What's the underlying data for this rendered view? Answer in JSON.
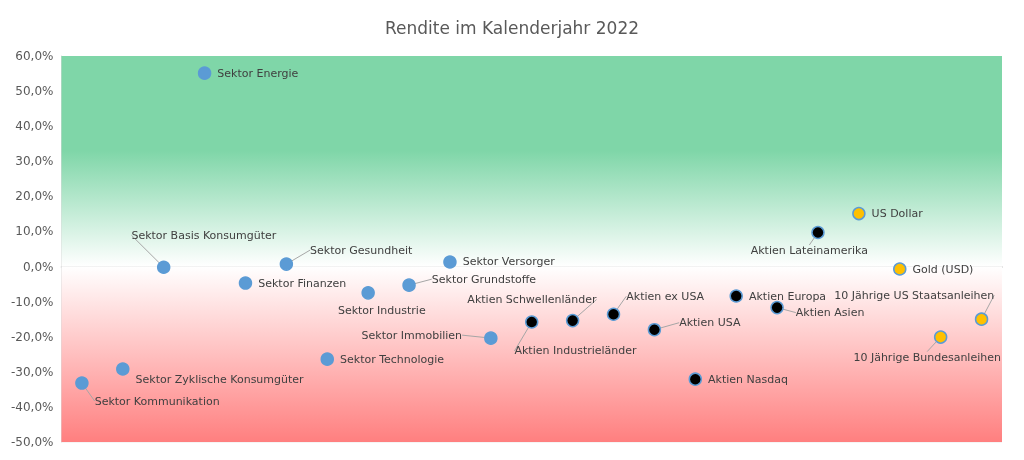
{
  "chart_data": {
    "type": "scatter",
    "title": "Rendite im Kalenderjahr 2022",
    "categories": [
      null,
      null,
      null,
      null,
      null,
      null,
      null,
      null,
      null,
      null,
      null,
      null,
      null,
      null,
      null,
      null,
      null,
      null,
      null,
      null,
      null,
      null,
      null
    ],
    "series": [
      {
        "name": "Sektor Kommunikation",
        "color": "#5b9bd5",
        "values": [
          -33.2,
          null,
          null,
          null,
          null,
          null,
          null,
          null,
          null,
          null,
          null,
          null,
          null,
          null,
          null,
          null,
          null,
          null,
          null,
          null,
          null,
          null,
          null
        ]
      },
      {
        "name": "Sektor Zyklische Konsumgüter",
        "color": "#5b9bd5",
        "values": [
          null,
          -29.2,
          null,
          null,
          null,
          null,
          null,
          null,
          null,
          null,
          null,
          null,
          null,
          null,
          null,
          null,
          null,
          null,
          null,
          null,
          null,
          null,
          null
        ]
      },
      {
        "name": "Sektor Basis Konsumgüter",
        "color": "#5b9bd5",
        "values": [
          null,
          null,
          -0.2,
          null,
          null,
          null,
          null,
          null,
          null,
          null,
          null,
          null,
          null,
          null,
          null,
          null,
          null,
          null,
          null,
          null,
          null,
          null,
          null
        ]
      },
      {
        "name": "Sektor Energie",
        "color": "#5b9bd5",
        "values": [
          null,
          null,
          null,
          55.1,
          null,
          null,
          null,
          null,
          null,
          null,
          null,
          null,
          null,
          null,
          null,
          null,
          null,
          null,
          null,
          null,
          null,
          null,
          null
        ]
      },
      {
        "name": "Sektor Finanzen",
        "color": "#5b9bd5",
        "values": [
          null,
          null,
          null,
          null,
          -4.7,
          null,
          null,
          null,
          null,
          null,
          null,
          null,
          null,
          null,
          null,
          null,
          null,
          null,
          null,
          null,
          null,
          null,
          null
        ]
      },
      {
        "name": "Sektor Gesundheit",
        "color": "#5b9bd5",
        "values": [
          null,
          null,
          null,
          null,
          null,
          0.7,
          null,
          null,
          null,
          null,
          null,
          null,
          null,
          null,
          null,
          null,
          null,
          null,
          null,
          null,
          null,
          null,
          null
        ]
      },
      {
        "name": "Sektor Technologie",
        "color": "#5b9bd5",
        "values": [
          null,
          null,
          null,
          null,
          null,
          null,
          -26.4,
          null,
          null,
          null,
          null,
          null,
          null,
          null,
          null,
          null,
          null,
          null,
          null,
          null,
          null,
          null,
          null
        ]
      },
      {
        "name": "Sektor Industrie",
        "color": "#5b9bd5",
        "values": [
          null,
          null,
          null,
          null,
          null,
          null,
          null,
          -7.5,
          null,
          null,
          null,
          null,
          null,
          null,
          null,
          null,
          null,
          null,
          null,
          null,
          null,
          null,
          null
        ]
      },
      {
        "name": "Sektor Grundstoffe",
        "color": "#5b9bd5",
        "values": [
          null,
          null,
          null,
          null,
          null,
          null,
          null,
          null,
          -5.3,
          null,
          null,
          null,
          null,
          null,
          null,
          null,
          null,
          null,
          null,
          null,
          null,
          null,
          null
        ]
      },
      {
        "name": "Sektor Versorger",
        "color": "#5b9bd5",
        "values": [
          null,
          null,
          null,
          null,
          null,
          null,
          null,
          null,
          null,
          1.3,
          null,
          null,
          null,
          null,
          null,
          null,
          null,
          null,
          null,
          null,
          null,
          null,
          null
        ]
      },
      {
        "name": "Sektor Immobilien",
        "color": "#5b9bd5",
        "values": [
          null,
          null,
          null,
          null,
          null,
          null,
          null,
          null,
          null,
          null,
          -20.4,
          null,
          null,
          null,
          null,
          null,
          null,
          null,
          null,
          null,
          null,
          null,
          null
        ]
      },
      {
        "name": "Aktien Industrieländer",
        "color": "#000000",
        "values": [
          null,
          null,
          null,
          null,
          null,
          null,
          null,
          null,
          null,
          null,
          null,
          -15.8,
          null,
          null,
          null,
          null,
          null,
          null,
          null,
          null,
          null,
          null,
          null
        ]
      },
      {
        "name": "Aktien Schwellenländer",
        "color": "#000000",
        "values": [
          null,
          null,
          null,
          null,
          null,
          null,
          null,
          null,
          null,
          null,
          null,
          null,
          -15.4,
          null,
          null,
          null,
          null,
          null,
          null,
          null,
          null,
          null,
          null
        ]
      },
      {
        "name": "Aktien ex USA",
        "color": "#000000",
        "values": [
          null,
          null,
          null,
          null,
          null,
          null,
          null,
          null,
          null,
          null,
          null,
          null,
          null,
          -13.6,
          null,
          null,
          null,
          null,
          null,
          null,
          null,
          null,
          null
        ]
      },
      {
        "name": "Aktien USA",
        "color": "#000000",
        "values": [
          null,
          null,
          null,
          null,
          null,
          null,
          null,
          null,
          null,
          null,
          null,
          null,
          null,
          null,
          -18.0,
          null,
          null,
          null,
          null,
          null,
          null,
          null,
          null
        ]
      },
      {
        "name": "Aktien Nasdaq",
        "color": "#000000",
        "values": [
          null,
          null,
          null,
          null,
          null,
          null,
          null,
          null,
          null,
          null,
          null,
          null,
          null,
          null,
          null,
          -32.1,
          null,
          null,
          null,
          null,
          null,
          null,
          null
        ]
      },
      {
        "name": "Aktien Europa",
        "color": "#000000",
        "values": [
          null,
          null,
          null,
          null,
          null,
          null,
          null,
          null,
          null,
          null,
          null,
          null,
          null,
          null,
          null,
          null,
          -8.4,
          null,
          null,
          null,
          null,
          null,
          null
        ]
      },
      {
        "name": "Aktien Asien",
        "color": "#000000",
        "values": [
          null,
          null,
          null,
          null,
          null,
          null,
          null,
          null,
          null,
          null,
          null,
          null,
          null,
          null,
          null,
          null,
          null,
          -11.7,
          null,
          null,
          null,
          null,
          null
        ]
      },
      {
        "name": "Aktien Lateinamerika",
        "color": "#000000",
        "values": [
          null,
          null,
          null,
          null,
          null,
          null,
          null,
          null,
          null,
          null,
          null,
          null,
          null,
          null,
          null,
          null,
          null,
          null,
          9.7,
          null,
          null,
          null,
          null
        ]
      },
      {
        "name": "US Dollar",
        "color": "#ffc000",
        "values": [
          null,
          null,
          null,
          null,
          null,
          null,
          null,
          null,
          null,
          null,
          null,
          null,
          null,
          null,
          null,
          null,
          null,
          null,
          null,
          15.1,
          null,
          null,
          null
        ]
      },
      {
        "name": "Gold (USD)",
        "color": "#ffc000",
        "values": [
          null,
          null,
          null,
          null,
          null,
          null,
          null,
          null,
          null,
          null,
          null,
          null,
          null,
          null,
          null,
          null,
          null,
          null,
          null,
          null,
          -0.7,
          null,
          null
        ]
      },
      {
        "name": "10 Jährige Bundesanleihen",
        "color": "#ffc000",
        "values": [
          null,
          null,
          null,
          null,
          null,
          null,
          null,
          null,
          null,
          null,
          null,
          null,
          null,
          null,
          null,
          null,
          null,
          null,
          null,
          null,
          null,
          -20.1,
          null
        ]
      },
      {
        "name": "10 Jährige US Staatsanleihen",
        "color": "#ffc000",
        "values": [
          null,
          null,
          null,
          null,
          null,
          null,
          null,
          null,
          null,
          null,
          null,
          null,
          null,
          null,
          null,
          null,
          null,
          null,
          null,
          null,
          null,
          null,
          -15.0
        ]
      }
    ],
    "ylim": [
      -50,
      60
    ],
    "yticks": [
      {
        "value": -50,
        "label": "-50,0%"
      },
      {
        "value": -40,
        "label": "-40,0%"
      },
      {
        "value": -30,
        "label": "-30,0%"
      },
      {
        "value": -20,
        "label": "-20,0%"
      },
      {
        "value": -10,
        "label": "-10,0%"
      },
      {
        "value": 0,
        "label": "0,0%"
      },
      {
        "value": 10,
        "label": "10,0%"
      },
      {
        "value": 20,
        "label": "20,0%"
      },
      {
        "value": 30,
        "label": "30,0%"
      },
      {
        "value": 40,
        "label": "40,0%"
      },
      {
        "value": 50,
        "label": "50,0%"
      },
      {
        "value": 60,
        "label": "60,0%"
      }
    ],
    "bands": [
      {
        "axis": "y",
        "from": 0,
        "to": 60,
        "color": "#7fd6a8"
      },
      {
        "axis": "y",
        "from": -50,
        "to": 0,
        "color": "#ff7f7f"
      }
    ],
    "grid": "y",
    "tick_labels": "y",
    "marker": "circle"
  }
}
